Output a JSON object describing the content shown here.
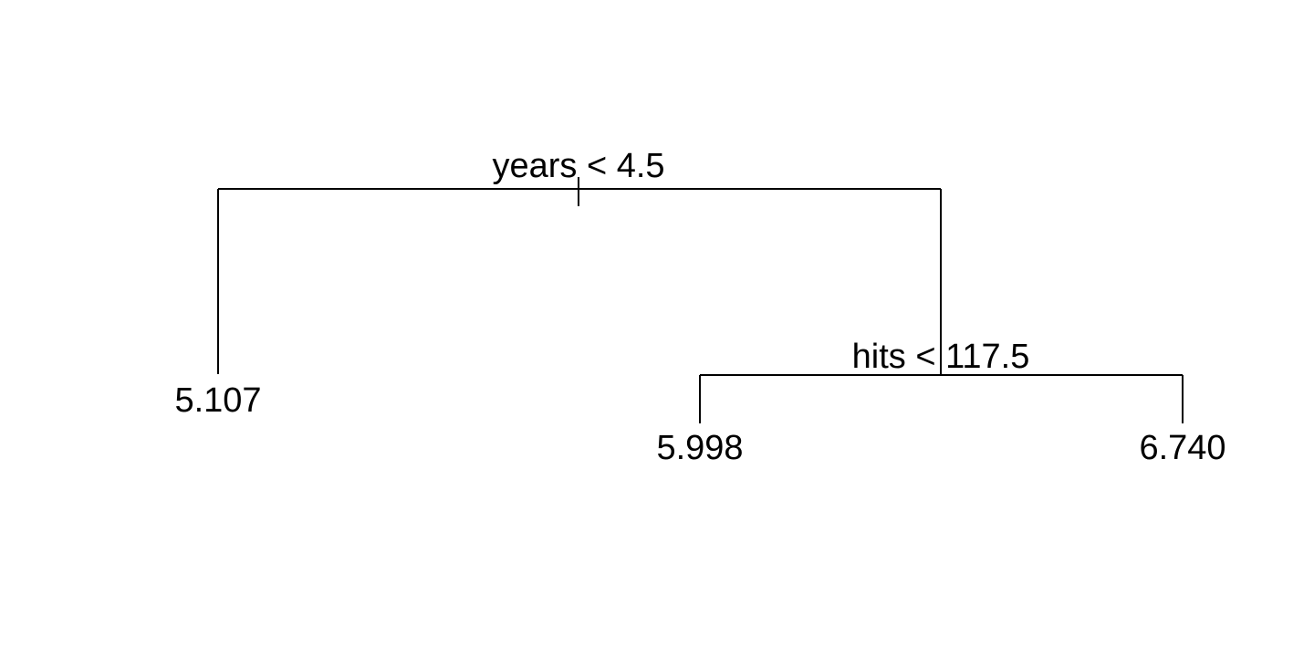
{
  "tree": {
    "root": {
      "split": "years < 4.5",
      "left_leaf": "5.107",
      "right": {
        "split": "hits < 117.5",
        "left_leaf": "5.998",
        "right_leaf": "6.740"
      }
    }
  }
}
